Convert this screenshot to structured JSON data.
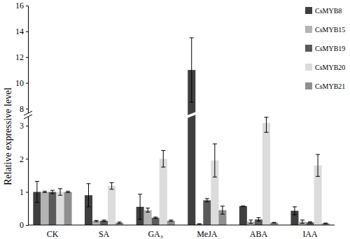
{
  "chart_data": {
    "type": "bar",
    "y_label": "Relative expressive level",
    "categories": [
      "CK",
      "SA",
      "GA₃",
      "MeJA",
      "ABA",
      "IAA"
    ],
    "series": [
      {
        "name": "CsMYB8",
        "color": "#3f3f3f",
        "values": [
          1.0,
          0.9,
          0.55,
          11.0,
          0.57,
          0.43
        ],
        "errors": [
          0.32,
          0.35,
          0.38,
          2.5,
          0.0,
          0.12
        ]
      },
      {
        "name": "CsMYB15",
        "color": "#b3b3b3",
        "values": [
          1.0,
          0.12,
          0.45,
          0.03,
          0.1,
          0.1
        ],
        "errors": [
          0.02,
          0.02,
          0.06,
          0.01,
          0.05,
          0.05
        ]
      },
      {
        "name": "CsMYB19",
        "color": "#5a5a5a",
        "values": [
          1.0,
          0.13,
          0.22,
          0.75,
          0.17,
          0.08
        ],
        "errors": [
          0.05,
          0.02,
          0.02,
          0.05,
          0.05,
          0.02
        ]
      },
      {
        "name": "CsMYB20",
        "color": "#dcdcdc",
        "values": [
          1.0,
          1.18,
          2.0,
          1.95,
          3.08,
          1.8
        ],
        "errors": [
          0.1,
          0.1,
          0.25,
          0.5,
          0.28,
          0.33
        ]
      },
      {
        "name": "CsMYB21",
        "color": "#8f8f8f",
        "values": [
          1.0,
          0.07,
          0.13,
          0.45,
          0.07,
          0.05
        ],
        "errors": [
          0.02,
          0.02,
          0.02,
          0.12,
          0.01,
          0.01
        ]
      }
    ],
    "ylim": [
      0,
      16
    ],
    "yticks": [
      0,
      1,
      2,
      3,
      8,
      10,
      12,
      14,
      16
    ],
    "legend": "top-right",
    "grid": false
  }
}
